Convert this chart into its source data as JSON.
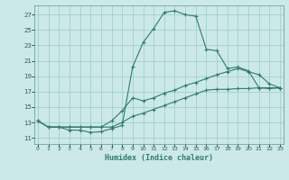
{
  "xlabel": "Humidex (Indice chaleur)",
  "background_color": "#cce8e8",
  "grid_color": "#99cccc",
  "line_color": "#2d7d6e",
  "x_ticks": [
    0,
    1,
    2,
    3,
    4,
    5,
    6,
    7,
    8,
    9,
    10,
    11,
    12,
    13,
    14,
    15,
    16,
    17,
    18,
    19,
    20,
    21,
    22,
    23
  ],
  "y_ticks": [
    11,
    13,
    15,
    17,
    19,
    21,
    23,
    25,
    27
  ],
  "xlim": [
    -0.3,
    23.3
  ],
  "ylim": [
    10.2,
    28.2
  ],
  "series": [
    {
      "x": [
        0,
        1,
        2,
        3,
        4,
        5,
        6,
        7,
        8,
        9,
        10,
        11,
        12,
        13,
        14,
        15,
        16,
        17,
        18,
        19,
        20,
        21,
        22,
        23
      ],
      "y": [
        13.2,
        12.4,
        12.4,
        12.0,
        12.0,
        11.7,
        11.8,
        12.2,
        12.6,
        20.2,
        23.4,
        25.2,
        27.3,
        27.5,
        27.0,
        26.8,
        22.5,
        22.3,
        20.0,
        20.2,
        19.7,
        17.5,
        17.4,
        17.5
      ]
    },
    {
      "x": [
        0,
        1,
        2,
        3,
        4,
        5,
        6,
        7,
        8,
        9,
        10,
        11,
        12,
        13,
        14,
        15,
        16,
        17,
        18,
        19,
        20,
        21,
        22,
        23
      ],
      "y": [
        13.2,
        12.4,
        12.4,
        12.4,
        12.4,
        12.4,
        12.4,
        13.2,
        14.5,
        16.2,
        15.8,
        16.2,
        16.8,
        17.2,
        17.8,
        18.2,
        18.7,
        19.2,
        19.6,
        20.0,
        19.6,
        19.2,
        18.0,
        17.5
      ]
    },
    {
      "x": [
        0,
        1,
        2,
        3,
        4,
        5,
        6,
        7,
        8,
        9,
        10,
        11,
        12,
        13,
        14,
        15,
        16,
        17,
        18,
        19,
        20,
        21,
        22,
        23
      ],
      "y": [
        13.2,
        12.4,
        12.4,
        12.4,
        12.4,
        12.4,
        12.4,
        12.4,
        13.0,
        13.8,
        14.2,
        14.7,
        15.2,
        15.7,
        16.2,
        16.7,
        17.2,
        17.3,
        17.3,
        17.4,
        17.4,
        17.5,
        17.5,
        17.5
      ]
    }
  ]
}
